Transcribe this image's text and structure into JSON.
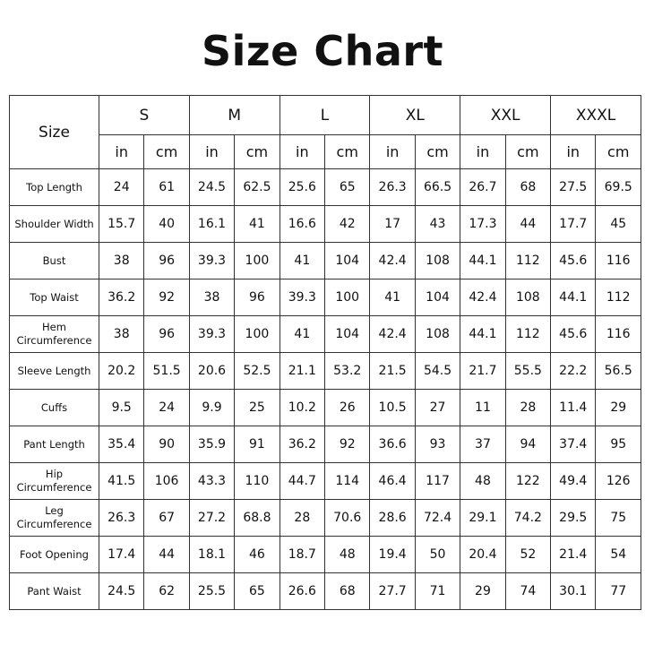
{
  "title": "Size Chart",
  "header": {
    "size_label": "Size",
    "sizes": [
      "S",
      "M",
      "L",
      "XL",
      "XXL",
      "XXXL"
    ],
    "units": [
      "in",
      "cm"
    ]
  },
  "rows": [
    {
      "label": "Top Length",
      "values": [
        "24",
        "61",
        "24.5",
        "62.5",
        "25.6",
        "65",
        "26.3",
        "66.5",
        "26.7",
        "68",
        "27.5",
        "69.5"
      ]
    },
    {
      "label": "Shoulder Width",
      "values": [
        "15.7",
        "40",
        "16.1",
        "41",
        "16.6",
        "42",
        "17",
        "43",
        "17.3",
        "44",
        "17.7",
        "45"
      ]
    },
    {
      "label": "Bust",
      "values": [
        "38",
        "96",
        "39.3",
        "100",
        "41",
        "104",
        "42.4",
        "108",
        "44.1",
        "112",
        "45.6",
        "116"
      ]
    },
    {
      "label": "Top Waist",
      "values": [
        "36.2",
        "92",
        "38",
        "96",
        "39.3",
        "100",
        "41",
        "104",
        "42.4",
        "108",
        "44.1",
        "112"
      ]
    },
    {
      "label": "Hem Circumference",
      "values": [
        "38",
        "96",
        "39.3",
        "100",
        "41",
        "104",
        "42.4",
        "108",
        "44.1",
        "112",
        "45.6",
        "116"
      ]
    },
    {
      "label": "Sleeve Length",
      "values": [
        "20.2",
        "51.5",
        "20.6",
        "52.5",
        "21.1",
        "53.2",
        "21.5",
        "54.5",
        "21.7",
        "55.5",
        "22.2",
        "56.5"
      ]
    },
    {
      "label": "Cuffs",
      "values": [
        "9.5",
        "24",
        "9.9",
        "25",
        "10.2",
        "26",
        "10.5",
        "27",
        "11",
        "28",
        "11.4",
        "29"
      ]
    },
    {
      "label": "Pant Length",
      "values": [
        "35.4",
        "90",
        "35.9",
        "91",
        "36.2",
        "92",
        "36.6",
        "93",
        "37",
        "94",
        "37.4",
        "95"
      ]
    },
    {
      "label": "Hip Circumference",
      "values": [
        "41.5",
        "106",
        "43.3",
        "110",
        "44.7",
        "114",
        "46.4",
        "117",
        "48",
        "122",
        "49.4",
        "126"
      ]
    },
    {
      "label": "Leg Circumference",
      "values": [
        "26.3",
        "67",
        "27.2",
        "68.8",
        "28",
        "70.6",
        "28.6",
        "72.4",
        "29.1",
        "74.2",
        "29.5",
        "75"
      ]
    },
    {
      "label": "Foot Opening",
      "values": [
        "17.4",
        "44",
        "18.1",
        "46",
        "18.7",
        "48",
        "19.4",
        "50",
        "20.4",
        "52",
        "21.4",
        "54"
      ]
    },
    {
      "label": "Pant Waist",
      "values": [
        "24.5",
        "62",
        "25.5",
        "65",
        "26.6",
        "68",
        "27.7",
        "71",
        "29",
        "74",
        "30.1",
        "77"
      ]
    }
  ]
}
